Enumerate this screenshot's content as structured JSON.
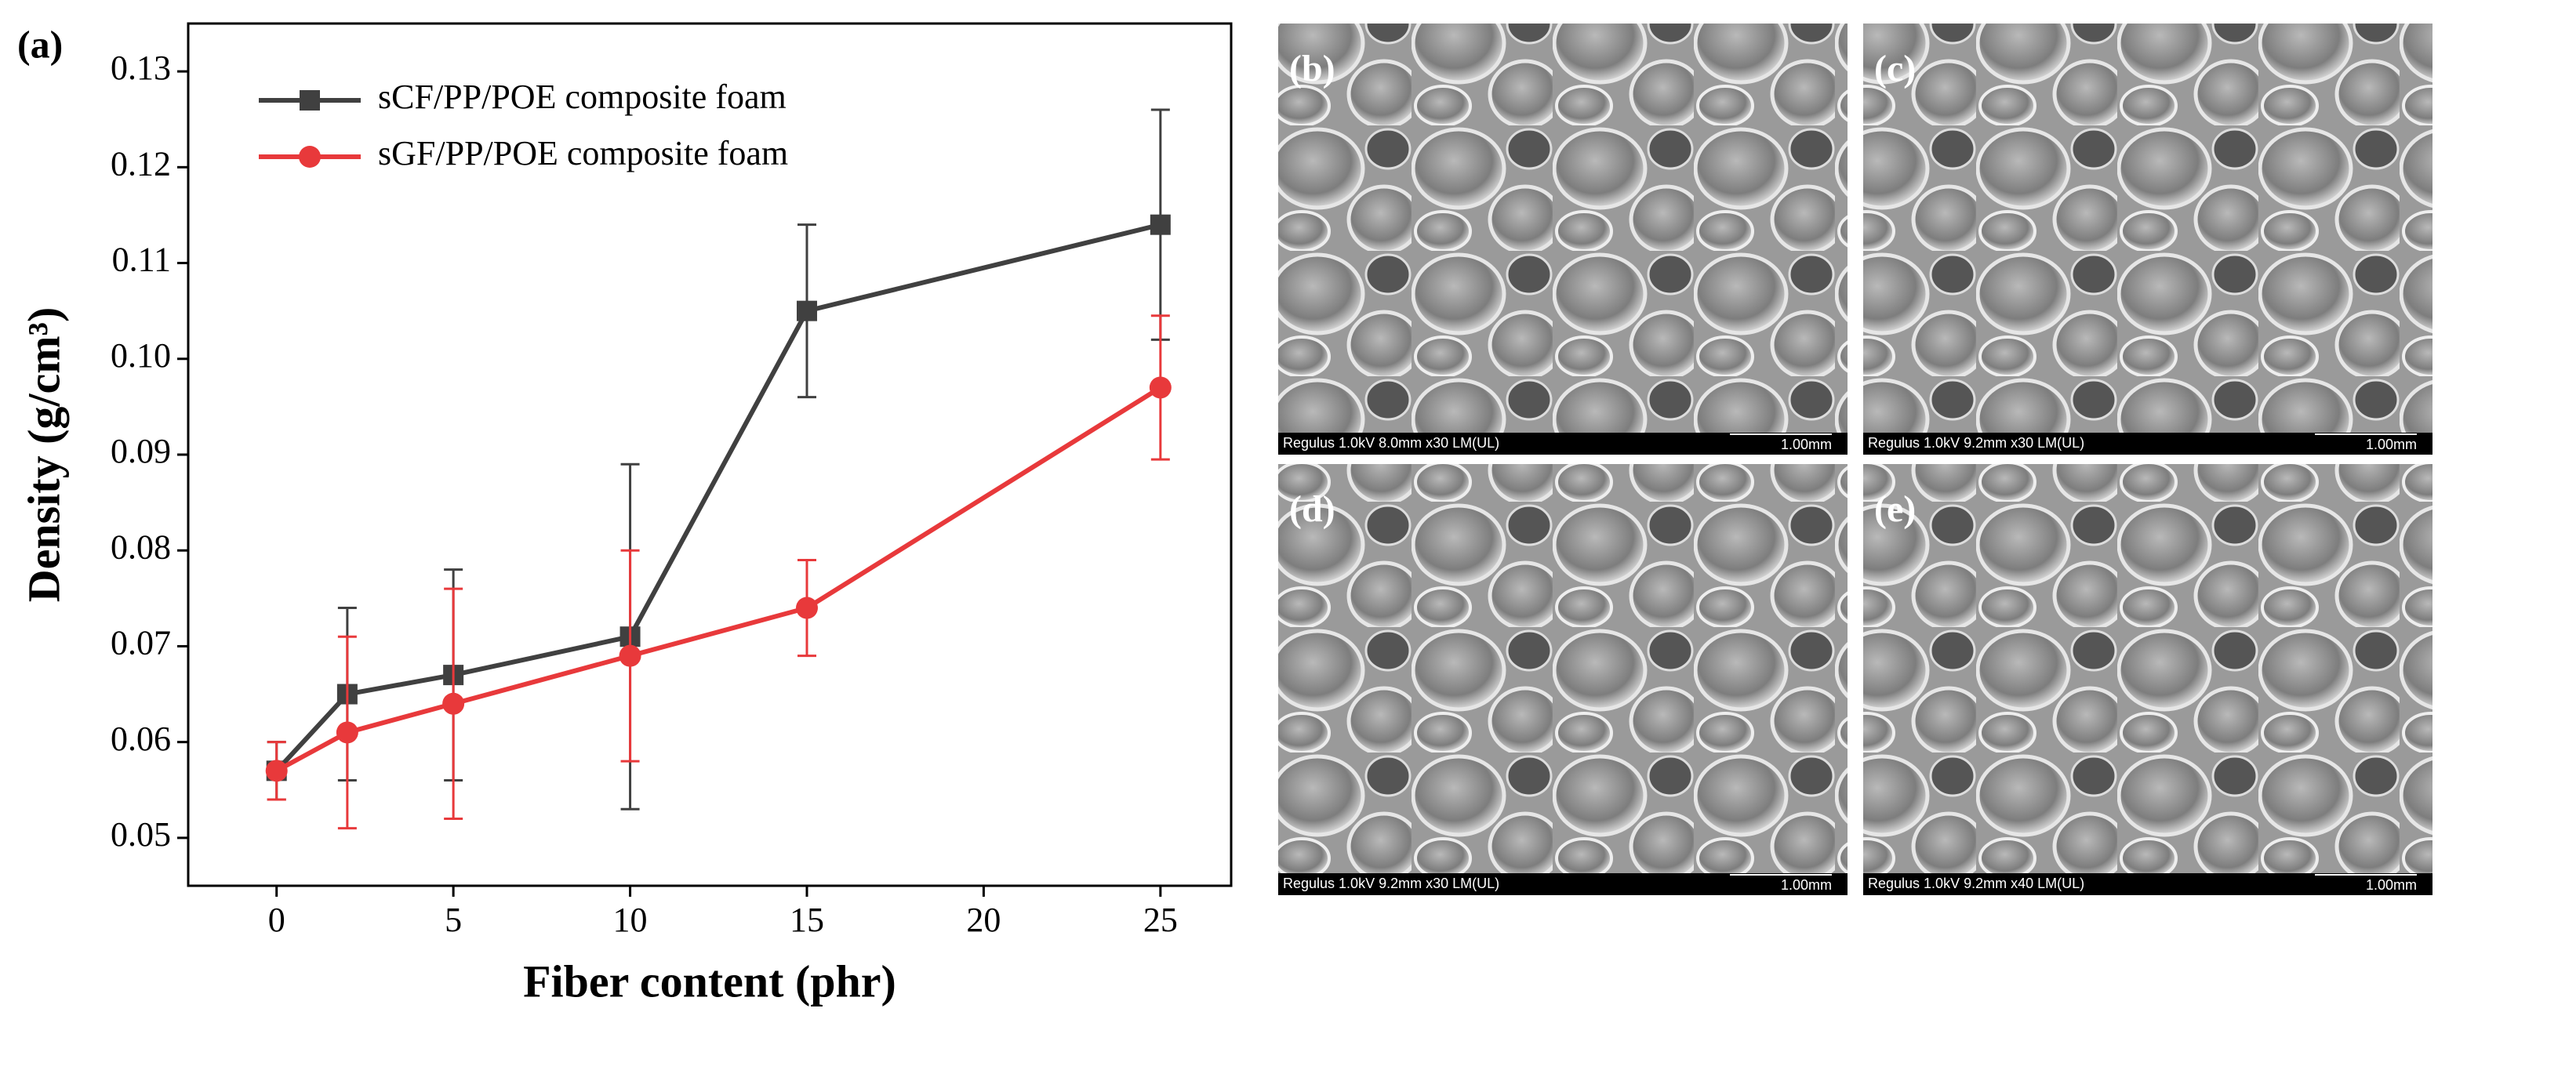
{
  "chart_data": {
    "type": "line",
    "panel_label": "(a)",
    "xlabel": "Fiber content (phr)",
    "ylabel": "Density (g/cm³)",
    "x": [
      0,
      2,
      5,
      10,
      15,
      25
    ],
    "series": [
      {
        "name": "sCF/PP/POE composite foam",
        "color": "#404040",
        "marker": "square",
        "values": [
          0.057,
          0.065,
          0.067,
          0.071,
          0.105,
          0.114
        ],
        "errors": [
          0.003,
          0.009,
          0.011,
          0.018,
          0.009,
          0.012
        ]
      },
      {
        "name": "sGF/PP/POE composite foam",
        "color": "#e8393b",
        "marker": "circle",
        "values": [
          0.057,
          0.061,
          0.064,
          0.069,
          0.074,
          0.097
        ],
        "errors": [
          0.003,
          0.01,
          0.012,
          0.011,
          0.005,
          0.0075
        ]
      }
    ],
    "xlim": [
      -2.5,
      27
    ],
    "ylim": [
      0.045,
      0.135
    ],
    "xticks": [
      0,
      5,
      10,
      15,
      20,
      25
    ],
    "yticks": [
      0.05,
      0.06,
      0.07,
      0.08,
      0.09,
      {
        "value": 0.1,
        "label": "0.10"
      },
      0.11,
      0.12,
      0.13
    ],
    "legend": "upper left"
  },
  "micrographs": [
    {
      "label": "(b)",
      "info": "Regulus 1.0kV 8.0mm x30 LM(UL)",
      "scale": "1.00mm"
    },
    {
      "label": "(c)",
      "info": "Regulus 1.0kV 9.2mm x30 LM(UL)",
      "scale": "1.00mm"
    },
    {
      "label": "(d)",
      "info": "Regulus 1.0kV 9.2mm x30 LM(UL)",
      "scale": "1.00mm"
    },
    {
      "label": "(e)",
      "info": "Regulus 1.0kV 9.2mm x40 LM(UL)",
      "scale": "1.00mm"
    }
  ]
}
